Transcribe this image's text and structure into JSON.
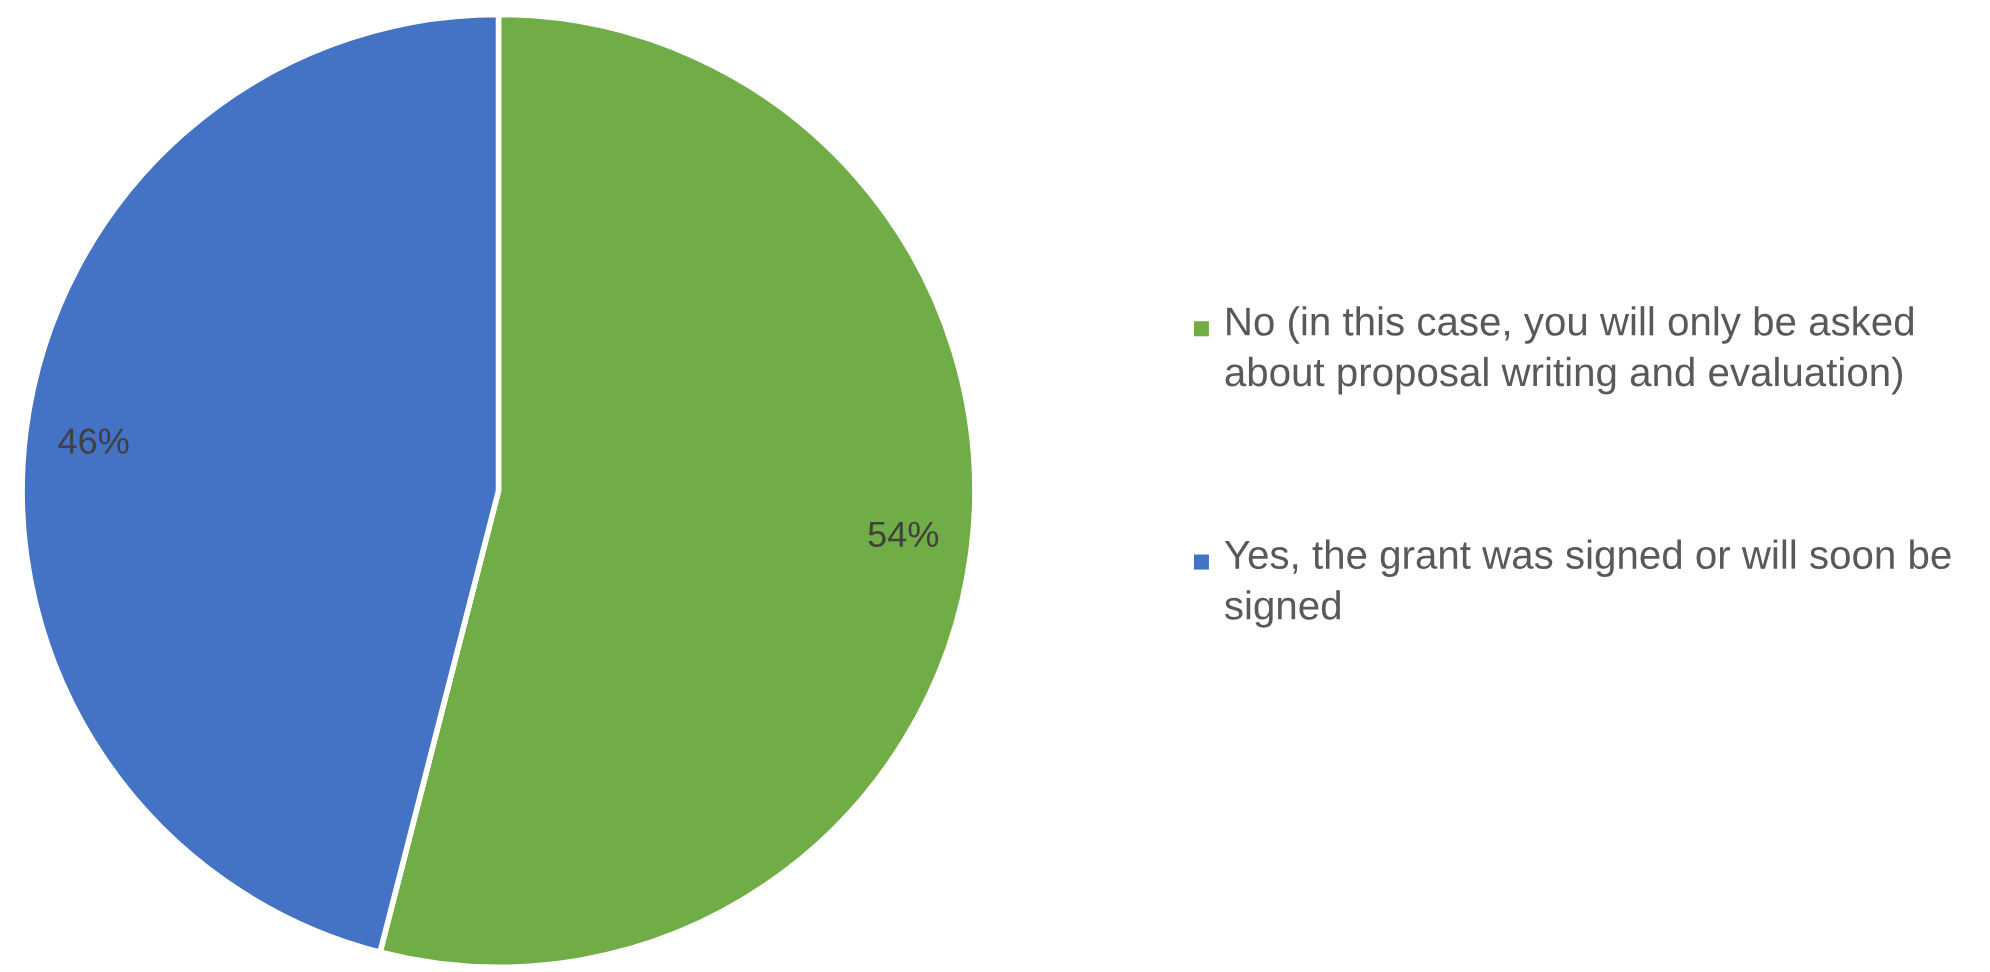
{
  "chart_data": {
    "type": "pie",
    "categories": [
      "No (in this case, you will only be asked about proposal writing and evaluation)",
      "Yes, the grant was signed or will soon be signed"
    ],
    "values": [
      54,
      46
    ],
    "colors": [
      "#70ad47",
      "#4472c4"
    ],
    "value_labels": [
      "54%",
      "46%"
    ],
    "legend": "right"
  }
}
